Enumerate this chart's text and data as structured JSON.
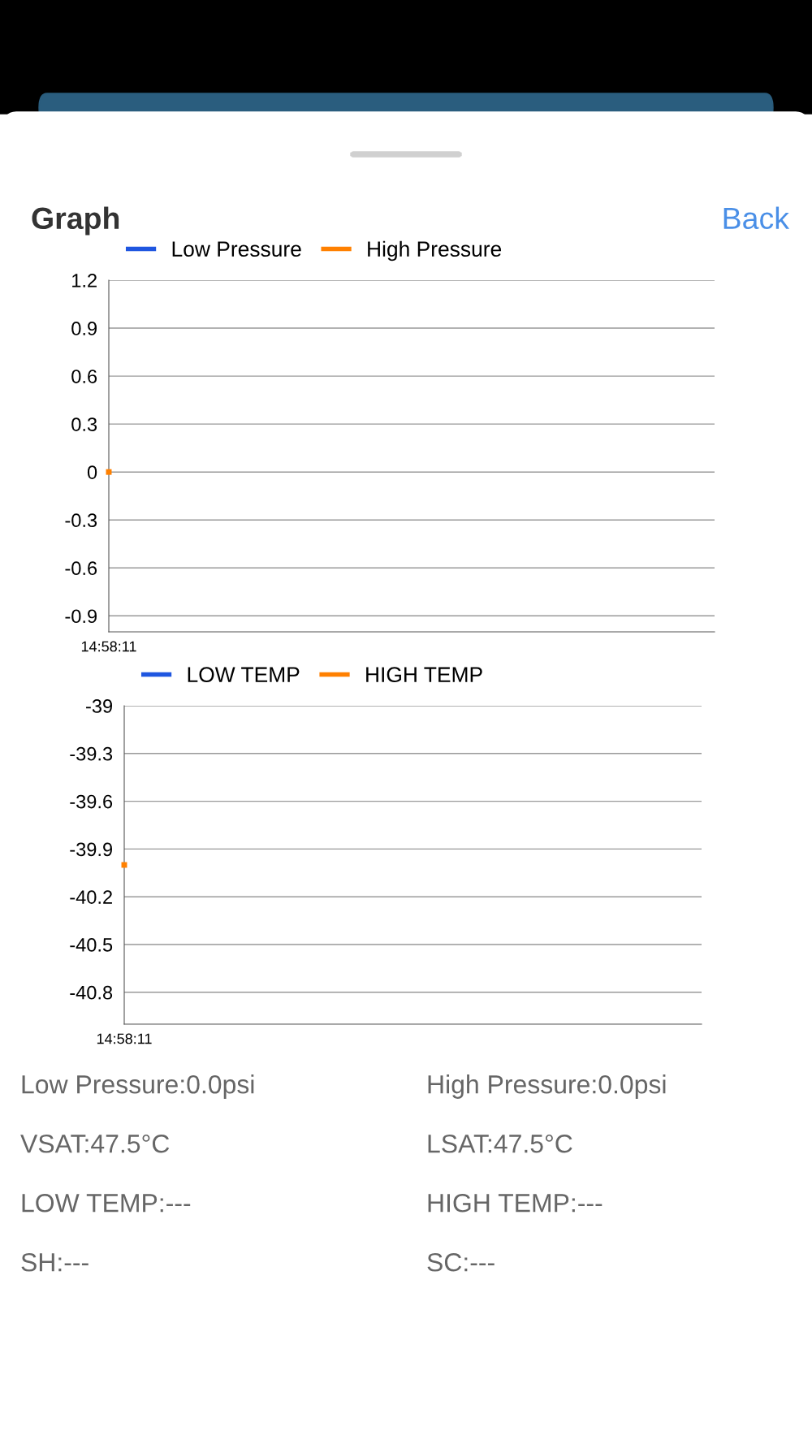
{
  "chart_data": [
    {
      "type": "line",
      "title": "Graph",
      "annotations": [
        "Back"
      ],
      "categories": [
        "14:58:11"
      ],
      "ylim": [
        -1.0,
        1.2
      ],
      "yticks": [
        1.2,
        0.9,
        0.6,
        0.3,
        0,
        -0.3,
        -0.6,
        -0.9
      ],
      "grid": "y",
      "legend": "top",
      "marker": "square",
      "series": [
        {
          "name": "Low Pressure",
          "color": "#1f56e0",
          "values": [
            null
          ]
        },
        {
          "name": "High Pressure",
          "color": "#ff8000",
          "values": [
            0
          ]
        }
      ]
    },
    {
      "type": "line",
      "categories": [
        "14:58:11"
      ],
      "ylim": [
        -41.0,
        -39.0
      ],
      "yticks": [
        -39,
        -39.3,
        -39.6,
        -39.9,
        -40.2,
        -40.5,
        -40.8
      ],
      "grid": "y",
      "legend": "top",
      "annotations": [
        "Low Pressure:0.0psi",
        "High Pressure:0.0psi",
        "VSAT:47.5°C",
        "LSAT:47.5°C",
        "LOW TEMP:---",
        "HIGH TEMP:---",
        "SH:---",
        "SC:---"
      ],
      "marker": "square",
      "series": [
        {
          "name": "LOW TEMP",
          "color": "#1f56e0",
          "values": [
            null
          ]
        },
        {
          "name": "HIGH TEMP",
          "color": "#ff8000",
          "values": [
            -40
          ]
        }
      ]
    }
  ]
}
